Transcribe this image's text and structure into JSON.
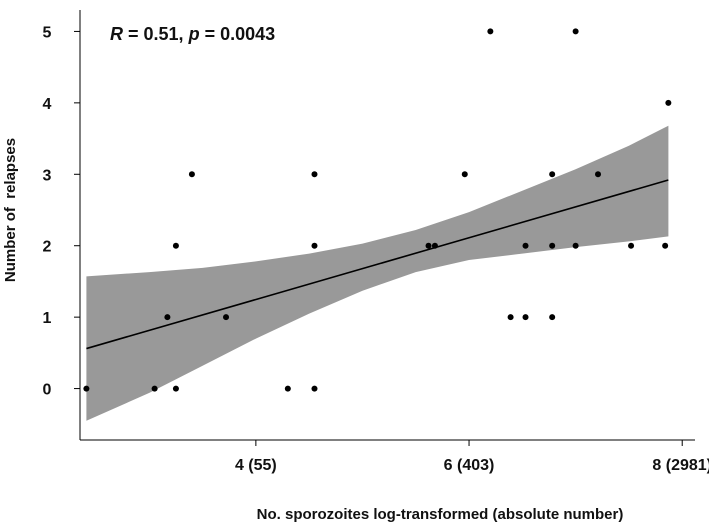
{
  "chart_data": {
    "type": "scatter",
    "title": "",
    "annotation": {
      "r_symbol": "R",
      "r_text": " = 0.51, ",
      "p_symbol": "p",
      "p_text": " = 0.0043"
    },
    "xlabel": "No. sporozoites log-transformed (absolute number)",
    "ylabel": "Number of  relapses",
    "xlim": [
      2.35,
      8.12
    ],
    "ylim": [
      -0.72,
      5.3
    ],
    "x_ticks": [
      {
        "value": 4,
        "label": "4  (55)"
      },
      {
        "value": 6,
        "label": "6 (403)"
      },
      {
        "value": 8,
        "label": "8 (2981)"
      }
    ],
    "y_ticks": [
      0,
      1,
      2,
      3,
      4,
      5
    ],
    "grid": false,
    "legend": "none",
    "colors": {
      "points": "#000000",
      "fit_line": "#000000",
      "confidence_band": "#999999"
    },
    "points": [
      {
        "x": 2.41,
        "y": 0
      },
      {
        "x": 3.05,
        "y": 0
      },
      {
        "x": 3.25,
        "y": 0
      },
      {
        "x": 4.3,
        "y": 0
      },
      {
        "x": 4.55,
        "y": 0
      },
      {
        "x": 3.17,
        "y": 1
      },
      {
        "x": 3.72,
        "y": 1
      },
      {
        "x": 6.39,
        "y": 1
      },
      {
        "x": 6.53,
        "y": 1
      },
      {
        "x": 6.78,
        "y": 1
      },
      {
        "x": 3.25,
        "y": 2
      },
      {
        "x": 4.55,
        "y": 2
      },
      {
        "x": 5.62,
        "y": 2
      },
      {
        "x": 5.68,
        "y": 2
      },
      {
        "x": 6.53,
        "y": 2
      },
      {
        "x": 6.78,
        "y": 2
      },
      {
        "x": 7.0,
        "y": 2
      },
      {
        "x": 7.52,
        "y": 2
      },
      {
        "x": 7.84,
        "y": 2
      },
      {
        "x": 3.4,
        "y": 3
      },
      {
        "x": 4.55,
        "y": 3
      },
      {
        "x": 5.96,
        "y": 3
      },
      {
        "x": 6.78,
        "y": 3
      },
      {
        "x": 7.21,
        "y": 3
      },
      {
        "x": 7.87,
        "y": 4
      },
      {
        "x": 6.2,
        "y": 5
      },
      {
        "x": 7.0,
        "y": 5
      }
    ],
    "fit_line": [
      {
        "x": 2.41,
        "y": 0.56
      },
      {
        "x": 7.87,
        "y": 2.92
      }
    ],
    "confidence_band": {
      "upper": [
        {
          "x": 2.41,
          "y": 1.57
        },
        {
          "x": 3.0,
          "y": 1.63
        },
        {
          "x": 3.5,
          "y": 1.69
        },
        {
          "x": 4.0,
          "y": 1.78
        },
        {
          "x": 4.5,
          "y": 1.89
        },
        {
          "x": 5.0,
          "y": 2.03
        },
        {
          "x": 5.5,
          "y": 2.22
        },
        {
          "x": 6.0,
          "y": 2.47
        },
        {
          "x": 6.5,
          "y": 2.77
        },
        {
          "x": 7.0,
          "y": 3.07
        },
        {
          "x": 7.5,
          "y": 3.4
        },
        {
          "x": 7.87,
          "y": 3.68
        }
      ],
      "lower": [
        {
          "x": 2.41,
          "y": -0.45
        },
        {
          "x": 3.0,
          "y": -0.06
        },
        {
          "x": 3.5,
          "y": 0.32
        },
        {
          "x": 4.0,
          "y": 0.7
        },
        {
          "x": 4.5,
          "y": 1.05
        },
        {
          "x": 5.0,
          "y": 1.37
        },
        {
          "x": 5.5,
          "y": 1.63
        },
        {
          "x": 6.0,
          "y": 1.8
        },
        {
          "x": 6.5,
          "y": 1.89
        },
        {
          "x": 7.0,
          "y": 1.98
        },
        {
          "x": 7.5,
          "y": 2.06
        },
        {
          "x": 7.87,
          "y": 2.13
        }
      ]
    }
  }
}
